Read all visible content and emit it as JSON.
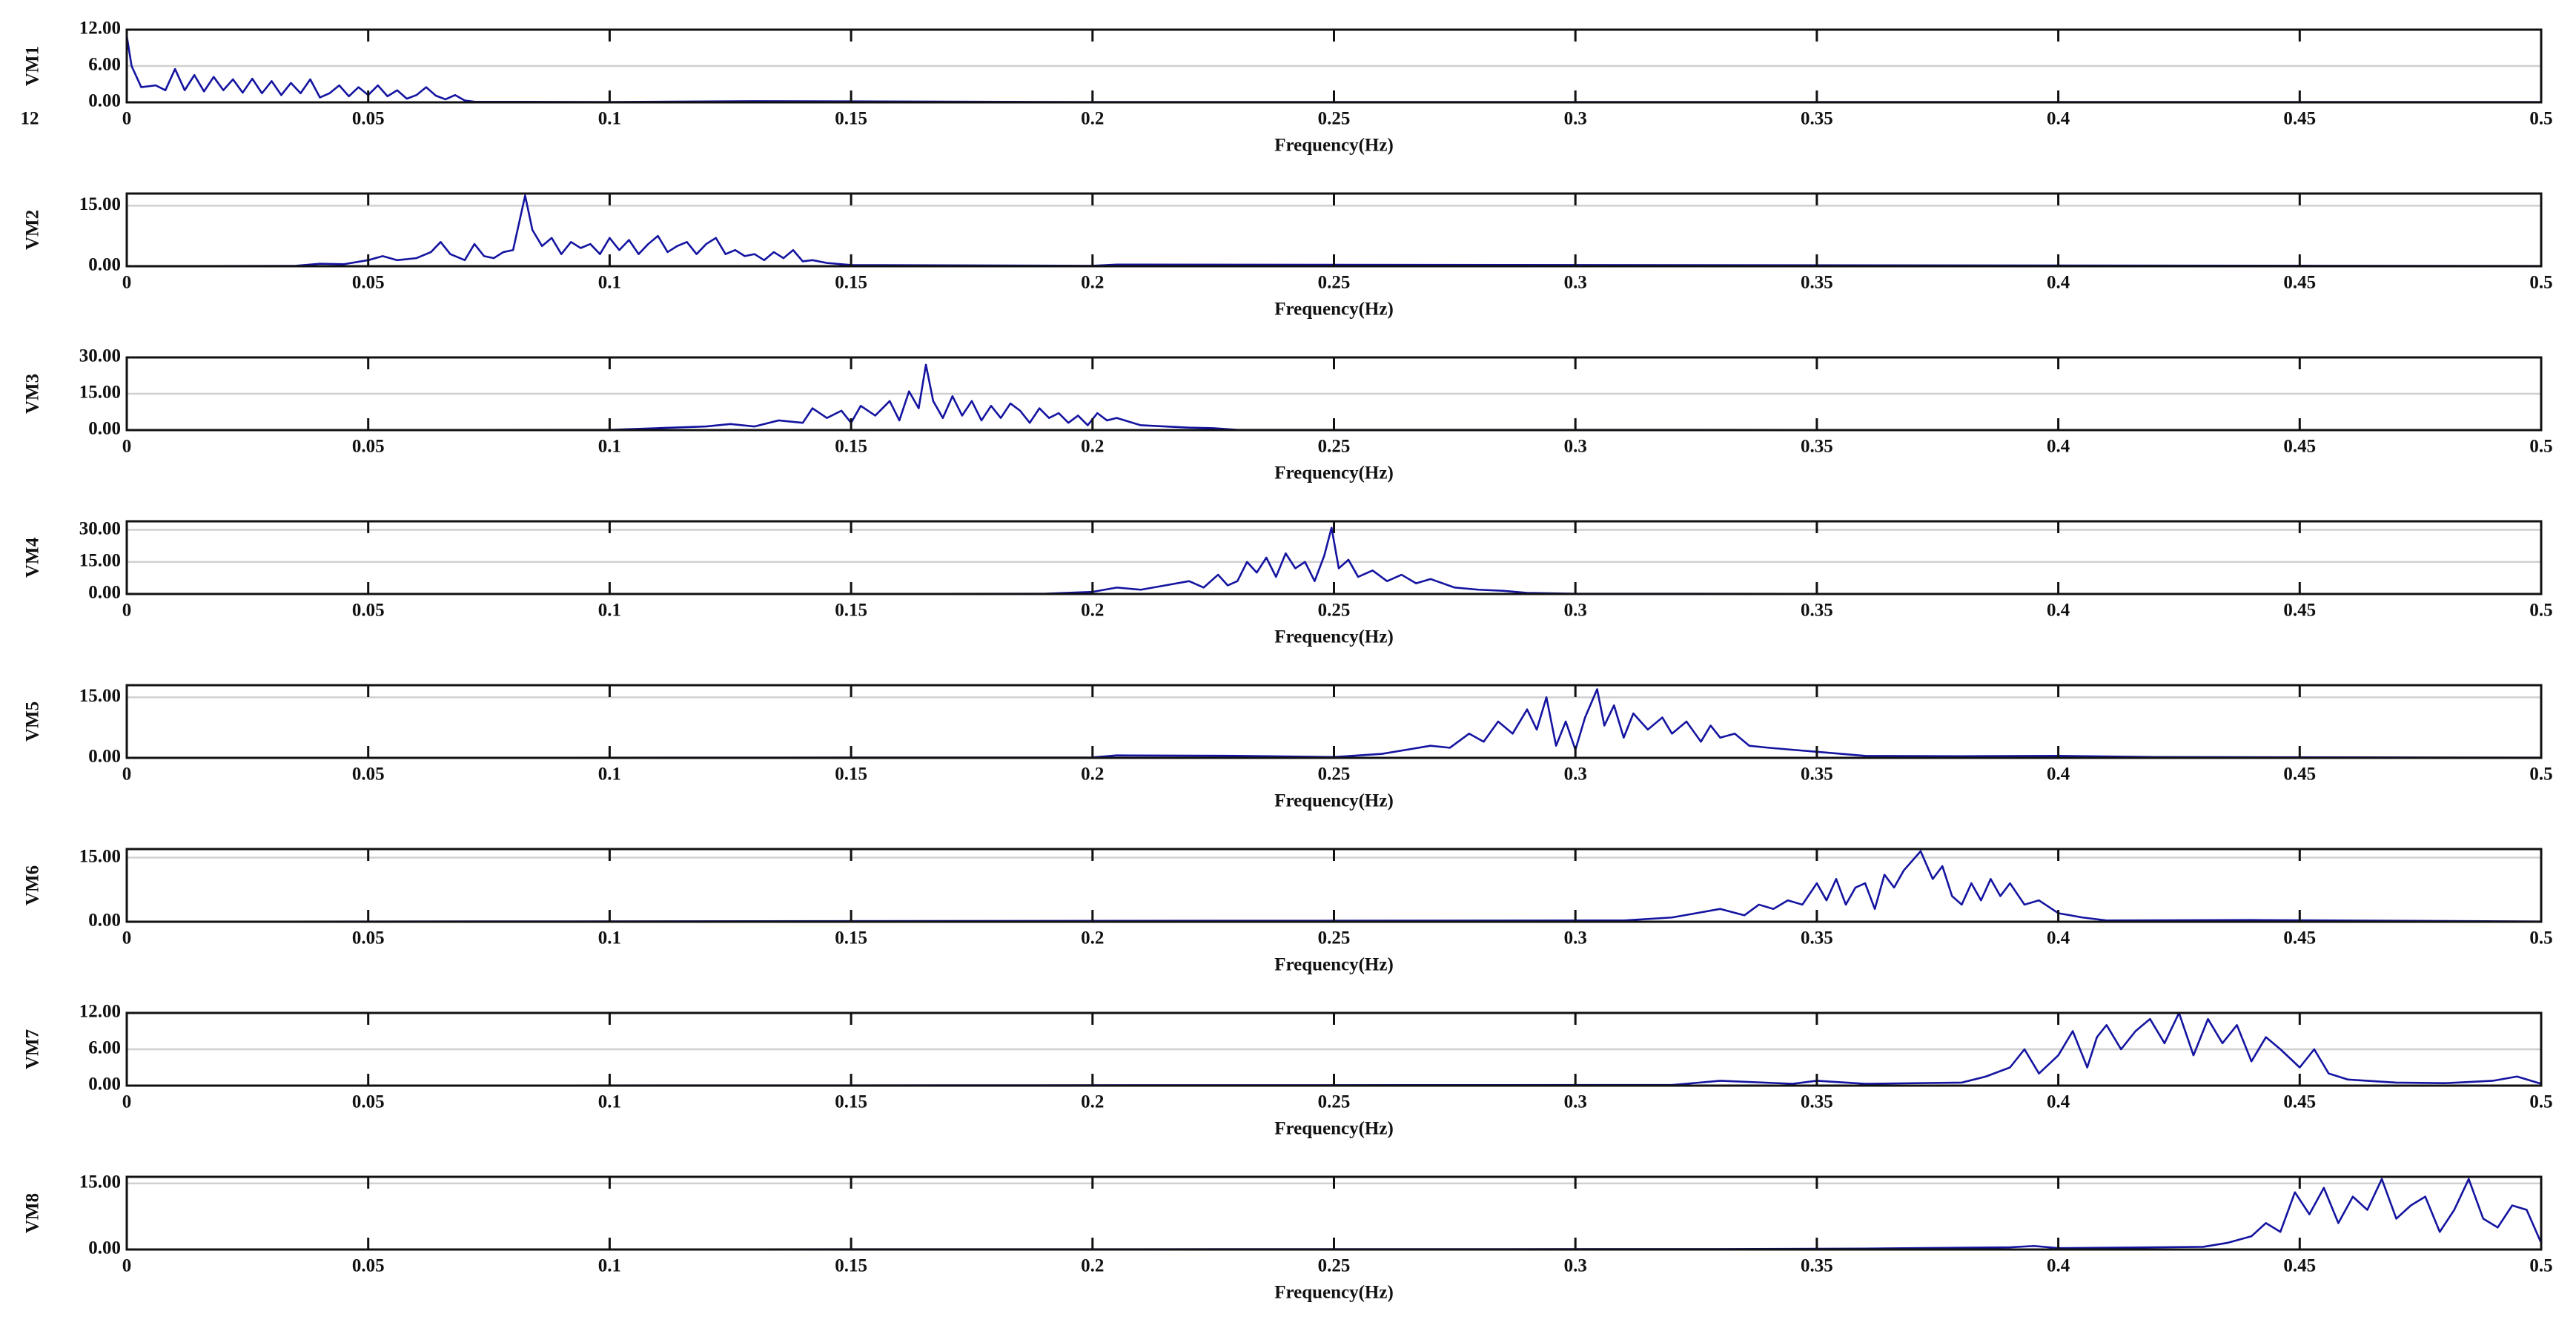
{
  "chart_data": [
    {
      "type": "line",
      "ylabel": "VM1",
      "xlabel": "Frequency(Hz)",
      "annotation": "12",
      "color": "#1414a0",
      "grid": true,
      "xlim": [
        0,
        0.5
      ],
      "xticks": [
        0,
        0.05,
        0.1,
        0.15,
        0.2,
        0.25,
        0.3,
        0.35,
        0.4,
        0.45,
        0.5
      ],
      "ylim": [
        0,
        12
      ],
      "yticks": [
        {
          "value": 0,
          "label": "0.00"
        },
        {
          "value": 6,
          "label": "6.00"
        },
        {
          "value": 12,
          "label": "12.00"
        }
      ],
      "x": [
        0,
        0.001,
        0.003,
        0.006,
        0.008,
        0.01,
        0.012,
        0.014,
        0.016,
        0.018,
        0.02,
        0.022,
        0.024,
        0.026,
        0.028,
        0.03,
        0.032,
        0.034,
        0.036,
        0.038,
        0.04,
        0.042,
        0.044,
        0.046,
        0.048,
        0.05,
        0.052,
        0.054,
        0.056,
        0.058,
        0.06,
        0.062,
        0.064,
        0.066,
        0.068,
        0.07,
        0.072,
        0.1,
        0.13,
        0.2,
        0.5
      ],
      "values": [
        11,
        6,
        2.5,
        2.8,
        2,
        5.5,
        2,
        4.5,
        1.8,
        4.2,
        2,
        3.8,
        1.6,
        3.9,
        1.5,
        3.5,
        1.2,
        3.2,
        1.5,
        3.8,
        0.8,
        1.5,
        2.8,
        1,
        2.5,
        1.2,
        2.8,
        1,
        2,
        0.6,
        1.2,
        2.5,
        1.1,
        0.5,
        1.2,
        0.3,
        0.1,
        0.05,
        0.2,
        0.05,
        0.05
      ]
    },
    {
      "type": "line",
      "ylabel": "VM2",
      "xlabel": "Frequency(Hz)",
      "color": "#1414a0",
      "grid": true,
      "xlim": [
        0,
        0.5
      ],
      "xticks": [
        0,
        0.05,
        0.1,
        0.15,
        0.2,
        0.25,
        0.3,
        0.35,
        0.4,
        0.45,
        0.5
      ],
      "ylim": [
        0,
        18
      ],
      "yticks": [
        {
          "value": 0,
          "label": "0.00"
        },
        {
          "value": 15,
          "label": "15.00"
        }
      ],
      "x": [
        0,
        0.035,
        0.04,
        0.045,
        0.05,
        0.053,
        0.056,
        0.06,
        0.063,
        0.065,
        0.067,
        0.07,
        0.072,
        0.074,
        0.076,
        0.078,
        0.08,
        0.0825,
        0.084,
        0.086,
        0.088,
        0.09,
        0.092,
        0.094,
        0.096,
        0.098,
        0.1,
        0.102,
        0.104,
        0.106,
        0.108,
        0.11,
        0.112,
        0.114,
        0.116,
        0.118,
        0.12,
        0.122,
        0.124,
        0.126,
        0.128,
        0.13,
        0.132,
        0.134,
        0.136,
        0.138,
        0.14,
        0.142,
        0.145,
        0.15,
        0.2,
        0.205,
        0.5
      ],
      "values": [
        0,
        0.1,
        0.6,
        0.5,
        1.5,
        2.5,
        1.5,
        2,
        3.5,
        6,
        3,
        1.5,
        5.5,
        2.5,
        2,
        3.5,
        4,
        17.5,
        9,
        5,
        7,
        3,
        6,
        4.5,
        5.5,
        3,
        7,
        4,
        6.5,
        3,
        5.5,
        7.5,
        3.5,
        5,
        6,
        3,
        5.5,
        7,
        3,
        4,
        2.5,
        3,
        1.5,
        3.5,
        2,
        4,
        1.2,
        1.5,
        0.8,
        0.3,
        0.1,
        0.4,
        0.05
      ]
    },
    {
      "type": "line",
      "ylabel": "VM3",
      "xlabel": "Frequency(Hz)",
      "color": "#1414a0",
      "grid": true,
      "xlim": [
        0,
        0.5
      ],
      "xticks": [
        0,
        0.05,
        0.1,
        0.15,
        0.2,
        0.25,
        0.3,
        0.35,
        0.4,
        0.45,
        0.5
      ],
      "ylim": [
        0,
        30
      ],
      "yticks": [
        {
          "value": 0,
          "label": "0.00"
        },
        {
          "value": 15,
          "label": "15.00"
        },
        {
          "value": 30,
          "label": "30.00"
        }
      ],
      "x": [
        0,
        0.1,
        0.11,
        0.12,
        0.125,
        0.13,
        0.135,
        0.14,
        0.142,
        0.145,
        0.148,
        0.15,
        0.152,
        0.155,
        0.158,
        0.16,
        0.162,
        0.164,
        0.1655,
        0.167,
        0.169,
        0.171,
        0.173,
        0.175,
        0.177,
        0.179,
        0.181,
        0.183,
        0.185,
        0.187,
        0.189,
        0.191,
        0.193,
        0.195,
        0.197,
        0.199,
        0.201,
        0.203,
        0.205,
        0.21,
        0.215,
        0.22,
        0.225,
        0.23,
        0.5
      ],
      "values": [
        0,
        0.1,
        0.8,
        1.5,
        2.5,
        1.5,
        4,
        3,
        9,
        5,
        8,
        3,
        10,
        6,
        12,
        4,
        16,
        9,
        27,
        12,
        5,
        14,
        6,
        12,
        4,
        10,
        5,
        11,
        8,
        3,
        9,
        5,
        7,
        3,
        6,
        2,
        7,
        4,
        5,
        2,
        1.5,
        1,
        0.8,
        0.1,
        0.05
      ]
    },
    {
      "type": "line",
      "ylabel": "VM4",
      "xlabel": "Frequency(Hz)",
      "color": "#1414a0",
      "grid": true,
      "xlim": [
        0,
        0.5
      ],
      "xticks": [
        0,
        0.05,
        0.1,
        0.15,
        0.2,
        0.25,
        0.3,
        0.35,
        0.4,
        0.45,
        0.5
      ],
      "ylim": [
        0,
        34
      ],
      "yticks": [
        {
          "value": 0,
          "label": "0.00"
        },
        {
          "value": 15,
          "label": "15.00"
        },
        {
          "value": 30,
          "label": "30.00"
        }
      ],
      "x": [
        0,
        0.19,
        0.2,
        0.205,
        0.21,
        0.215,
        0.22,
        0.223,
        0.226,
        0.228,
        0.23,
        0.232,
        0.234,
        0.236,
        0.238,
        0.24,
        0.242,
        0.244,
        0.246,
        0.248,
        0.2495,
        0.251,
        0.253,
        0.255,
        0.258,
        0.261,
        0.264,
        0.267,
        0.27,
        0.275,
        0.28,
        0.285,
        0.29,
        0.3,
        0.5
      ],
      "values": [
        0,
        0.1,
        1,
        3,
        2,
        4,
        6,
        3,
        9,
        4,
        6,
        15,
        10,
        17,
        8,
        19,
        12,
        15,
        6,
        18,
        31,
        12,
        16,
        8,
        11,
        6,
        9,
        5,
        7,
        3,
        2,
        1.5,
        0.5,
        0.1,
        0.05
      ]
    },
    {
      "type": "line",
      "ylabel": "VM5",
      "xlabel": "Frequency(Hz)",
      "color": "#1414a0",
      "grid": true,
      "xlim": [
        0,
        0.5
      ],
      "xticks": [
        0,
        0.05,
        0.1,
        0.15,
        0.2,
        0.25,
        0.3,
        0.35,
        0.4,
        0.45,
        0.5
      ],
      "ylim": [
        0,
        18
      ],
      "yticks": [
        {
          "value": 0,
          "label": "0.00"
        },
        {
          "value": 15,
          "label": "15.00"
        }
      ],
      "x": [
        0,
        0.2,
        0.205,
        0.23,
        0.25,
        0.26,
        0.265,
        0.27,
        0.274,
        0.278,
        0.281,
        0.284,
        0.287,
        0.29,
        0.292,
        0.294,
        0.296,
        0.298,
        0.3,
        0.302,
        0.3045,
        0.306,
        0.308,
        0.31,
        0.312,
        0.315,
        0.318,
        0.32,
        0.323,
        0.326,
        0.328,
        0.33,
        0.333,
        0.336,
        0.34,
        0.345,
        0.35,
        0.36,
        0.38,
        0.4,
        0.42,
        0.5
      ],
      "values": [
        0,
        0.1,
        0.6,
        0.5,
        0.2,
        1,
        2,
        3,
        2.5,
        6,
        4,
        9,
        6,
        12,
        7,
        15,
        3,
        9,
        2,
        10,
        17,
        8,
        13,
        5,
        11,
        7,
        10,
        6,
        9,
        4,
        8,
        5,
        6,
        3,
        2.5,
        2,
        1.5,
        0.5,
        0.4,
        0.5,
        0.2,
        0.05
      ]
    },
    {
      "type": "line",
      "ylabel": "VM6",
      "xlabel": "Frequency(Hz)",
      "color": "#1414a0",
      "grid": true,
      "xlim": [
        0,
        0.5
      ],
      "xticks": [
        0,
        0.05,
        0.1,
        0.15,
        0.2,
        0.25,
        0.3,
        0.35,
        0.4,
        0.45,
        0.5
      ],
      "ylim": [
        0,
        17
      ],
      "yticks": [
        {
          "value": 0,
          "label": "0.00"
        },
        {
          "value": 15,
          "label": "15.00"
        }
      ],
      "x": [
        0,
        0.31,
        0.32,
        0.325,
        0.33,
        0.335,
        0.338,
        0.341,
        0.344,
        0.347,
        0.35,
        0.352,
        0.354,
        0.356,
        0.358,
        0.36,
        0.362,
        0.364,
        0.366,
        0.368,
        0.3715,
        0.374,
        0.376,
        0.378,
        0.38,
        0.382,
        0.384,
        0.386,
        0.388,
        0.39,
        0.393,
        0.396,
        0.4,
        0.405,
        0.41,
        0.44,
        0.5
      ],
      "values": [
        0,
        0.3,
        1,
        2,
        3,
        1.5,
        4,
        3,
        5,
        4,
        9,
        5,
        10,
        4,
        8,
        9,
        3,
        11,
        8,
        12,
        16.5,
        10,
        13,
        6,
        4,
        9,
        5,
        10,
        6,
        9,
        4,
        5,
        2,
        1,
        0.3,
        0.4,
        0.05
      ]
    },
    {
      "type": "line",
      "ylabel": "VM7",
      "xlabel": "Frequency(Hz)",
      "color": "#1414a0",
      "grid": true,
      "xlim": [
        0,
        0.5
      ],
      "xticks": [
        0,
        0.05,
        0.1,
        0.15,
        0.2,
        0.25,
        0.3,
        0.35,
        0.4,
        0.45,
        0.5
      ],
      "ylim": [
        0,
        12
      ],
      "yticks": [
        {
          "value": 0,
          "label": "0.00"
        },
        {
          "value": 6,
          "label": "6.00"
        },
        {
          "value": 12,
          "label": "12.00"
        }
      ],
      "x": [
        0,
        0.32,
        0.33,
        0.345,
        0.35,
        0.36,
        0.38,
        0.385,
        0.39,
        0.393,
        0.396,
        0.4,
        0.403,
        0.406,
        0.408,
        0.41,
        0.413,
        0.416,
        0.419,
        0.422,
        0.425,
        0.428,
        0.431,
        0.434,
        0.437,
        0.44,
        0.443,
        0.446,
        0.45,
        0.453,
        0.456,
        0.46,
        0.47,
        0.48,
        0.49,
        0.495,
        0.5
      ],
      "values": [
        0,
        0.1,
        0.8,
        0.3,
        0.8,
        0.3,
        0.5,
        1.5,
        3,
        6,
        2,
        5,
        9,
        3,
        8,
        10,
        6,
        9,
        11,
        7,
        12,
        5,
        11,
        7,
        10,
        4,
        8,
        6,
        3,
        6,
        2,
        1,
        0.5,
        0.4,
        0.8,
        1.5,
        0.3
      ]
    },
    {
      "type": "line",
      "ylabel": "VM8",
      "xlabel": "Frequency(Hz)",
      "color": "#1414a0",
      "grid": true,
      "xlim": [
        0,
        0.5
      ],
      "xticks": [
        0,
        0.05,
        0.1,
        0.15,
        0.2,
        0.25,
        0.3,
        0.35,
        0.4,
        0.45,
        0.5
      ],
      "ylim": [
        0,
        16.5
      ],
      "yticks": [
        {
          "value": 0,
          "label": "0.00"
        },
        {
          "value": 15,
          "label": "15.00"
        }
      ],
      "x": [
        0,
        0.33,
        0.36,
        0.39,
        0.395,
        0.4,
        0.43,
        0.435,
        0.44,
        0.443,
        0.446,
        0.449,
        0.452,
        0.455,
        0.458,
        0.461,
        0.464,
        0.467,
        0.47,
        0.473,
        0.476,
        0.479,
        0.482,
        0.485,
        0.488,
        0.491,
        0.494,
        0.497,
        0.5
      ],
      "values": [
        0,
        0.1,
        0.2,
        0.5,
        0.8,
        0.3,
        0.6,
        1.5,
        3,
        6,
        4,
        13,
        8,
        14,
        6,
        12,
        9,
        16,
        7,
        10,
        12,
        4,
        9,
        16,
        7,
        5,
        10,
        9,
        1.5
      ]
    }
  ]
}
